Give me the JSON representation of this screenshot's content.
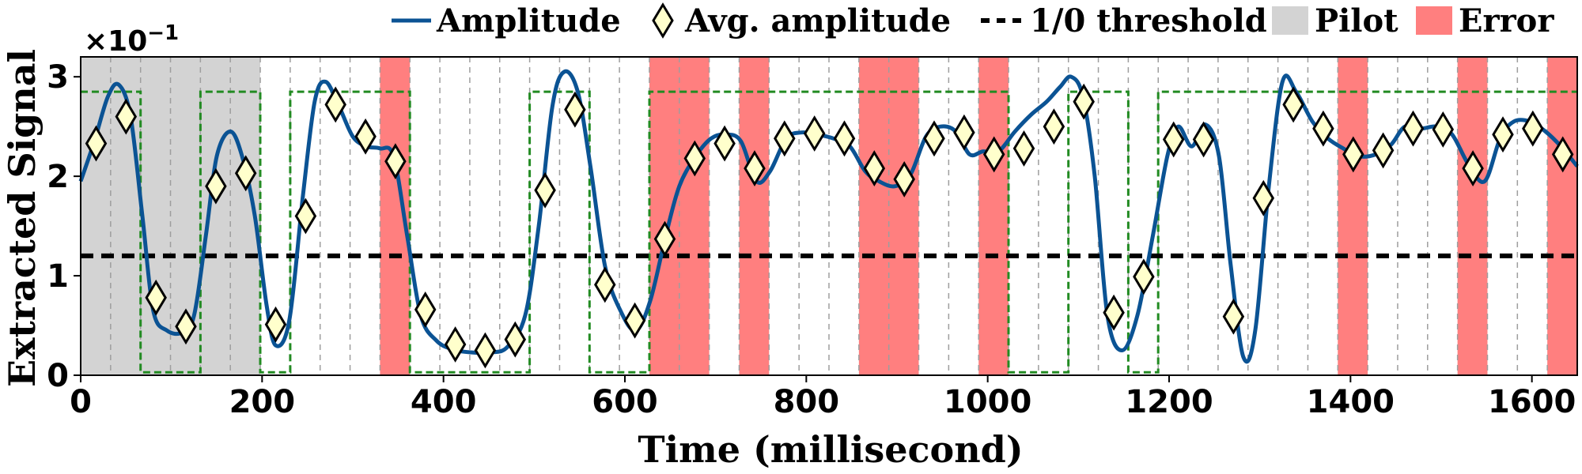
{
  "chart_data": {
    "type": "line",
    "xlabel": "Time (millisecond)",
    "ylabel": "Extracted Signal",
    "y_multiplier": "×10",
    "y_exponent": "−1",
    "xlim": [
      0,
      1650
    ],
    "ylim": [
      0,
      3.2
    ],
    "x_ticks": [
      "0",
      "200",
      "400",
      "600",
      "800",
      "1000",
      "1200",
      "1400",
      "1600"
    ],
    "y_ticks": [
      "0",
      "1",
      "2",
      "3"
    ],
    "grid": "vertical dashed slot boundaries",
    "legend_position": "top",
    "legend": {
      "amplitude": "Amplitude",
      "avg": "Avg. amplitude",
      "threshold": "1/0 threshold",
      "pilot": "Pilot",
      "error": "Error"
    },
    "colors": {
      "amplitude": "#0b5394",
      "marker_fill": "#ffffcc",
      "threshold": "#000000",
      "pilot": "#d3d3d3",
      "error": "#ff7f7f",
      "bits": "#228b22",
      "grid": "#9e9e9e"
    },
    "threshold": 1.2,
    "slot_width_ms": 33,
    "pilot_range": [
      0,
      198
    ],
    "error_ranges": [
      [
        330,
        363
      ],
      [
        627,
        693
      ],
      [
        726,
        759
      ],
      [
        858,
        924
      ],
      [
        990,
        1023
      ],
      [
        1386,
        1419
      ],
      [
        1518,
        1551
      ],
      [
        1617,
        1650
      ]
    ],
    "bits": [
      1,
      1,
      0,
      0,
      1,
      1,
      0,
      1,
      1,
      1,
      1,
      0,
      0,
      0,
      0,
      1,
      1,
      0,
      0,
      1,
      1,
      1,
      1,
      1,
      1,
      1,
      1,
      1,
      1,
      1,
      1,
      0,
      0,
      1,
      1,
      0,
      1,
      1,
      1,
      1,
      1,
      1,
      1,
      1,
      1,
      1,
      1,
      1,
      1,
      1
    ],
    "amplitude": {
      "x": [
        0,
        15,
        30,
        42,
        55,
        68,
        80,
        95,
        112,
        125,
        138,
        150,
        165,
        178,
        192,
        205,
        215,
        230,
        245,
        258,
        270,
        285,
        300,
        315,
        330,
        345,
        360,
        375,
        392,
        410,
        430,
        450,
        470,
        490,
        505,
        520,
        533,
        548,
        562,
        578,
        595,
        612,
        628,
        645,
        660,
        678,
        695,
        712,
        728,
        745,
        760,
        778,
        795,
        812,
        830,
        848,
        865,
        880,
        898,
        915,
        932,
        948,
        965,
        980,
        995,
        1012,
        1030,
        1048,
        1065,
        1080,
        1092,
        1105,
        1118,
        1132,
        1148,
        1165,
        1182,
        1198,
        1210,
        1225,
        1240,
        1255,
        1268,
        1282,
        1295,
        1310,
        1325,
        1340,
        1358,
        1375,
        1392,
        1410,
        1428,
        1445,
        1460,
        1478,
        1495,
        1512,
        1530,
        1548,
        1565,
        1580,
        1598,
        1615,
        1632,
        1650
      ],
      "y": [
        1.95,
        2.35,
        2.8,
        2.92,
        2.6,
        1.6,
        0.65,
        0.45,
        0.43,
        0.6,
        1.4,
        2.2,
        2.45,
        2.2,
        1.6,
        0.7,
        0.3,
        0.55,
        1.8,
        2.75,
        2.95,
        2.7,
        2.4,
        2.3,
        2.28,
        2.2,
        1.4,
        0.6,
        0.35,
        0.26,
        0.23,
        0.23,
        0.28,
        0.6,
        1.5,
        2.7,
        3.05,
        2.85,
        2.1,
        1.1,
        0.65,
        0.45,
        0.75,
        1.4,
        1.9,
        2.2,
        2.38,
        2.42,
        2.35,
        1.95,
        2.05,
        2.38,
        2.44,
        2.42,
        2.38,
        2.3,
        2.05,
        1.95,
        1.9,
        2.02,
        2.4,
        2.5,
        2.45,
        2.22,
        2.25,
        2.25,
        2.45,
        2.62,
        2.75,
        2.9,
        3.0,
        2.8,
        2.0,
        0.6,
        0.25,
        0.6,
        1.4,
        2.2,
        2.5,
        2.3,
        2.52,
        2.2,
        1.1,
        0.18,
        0.45,
        1.9,
        2.95,
        2.85,
        2.55,
        2.38,
        2.28,
        2.2,
        2.22,
        2.32,
        2.5,
        2.48,
        2.5,
        2.42,
        2.12,
        1.95,
        2.38,
        2.55,
        2.55,
        2.45,
        2.3,
        2.1
      ]
    },
    "avg_amplitude": {
      "x": [
        17,
        50,
        83,
        116,
        149,
        182,
        215,
        248,
        281,
        314,
        347,
        380,
        413,
        446,
        479,
        512,
        545,
        578,
        611,
        644,
        677,
        710,
        743,
        776,
        809,
        842,
        875,
        908,
        941,
        974,
        1007,
        1040,
        1073,
        1106,
        1139,
        1172,
        1205,
        1238,
        1271,
        1304,
        1337,
        1370,
        1403,
        1436,
        1469,
        1502,
        1535,
        1568,
        1601,
        1634
      ],
      "y": [
        2.33,
        2.6,
        0.78,
        0.49,
        1.9,
        2.03,
        0.51,
        1.6,
        2.72,
        2.4,
        2.15,
        0.66,
        0.31,
        0.25,
        0.36,
        1.86,
        2.67,
        0.91,
        0.55,
        1.37,
        2.18,
        2.33,
        2.08,
        2.38,
        2.43,
        2.38,
        2.08,
        1.97,
        2.38,
        2.44,
        2.22,
        2.28,
        2.5,
        2.75,
        0.63,
        0.99,
        2.37,
        2.37,
        0.59,
        1.78,
        2.72,
        2.48,
        2.22,
        2.26,
        2.48,
        2.47,
        2.08,
        2.42,
        2.48,
        2.22
      ]
    }
  }
}
